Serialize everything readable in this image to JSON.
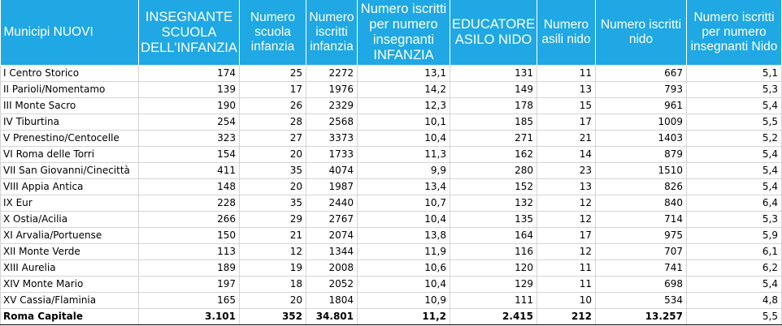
{
  "headers": [
    "Municipi NUOVI",
    "INSEGNANTE SCUOLA DELL'INFANZIA",
    "Numero scuola infanzia",
    "Numero iscritti infanzia",
    "Numero iscritti per numero insegnanti INFANZIA",
    "EDUCATORE ASILO NIDO",
    "Numero asili nido",
    "Numero iscritti nido",
    "Numero iscritti per numero insegnanti Nido"
  ],
  "rows": [
    [
      "I Centro Storico",
      "174",
      "25",
      "2272",
      "13,1",
      "131",
      "11",
      "667",
      "5,1"
    ],
    [
      "II Parioli/Nomentamo",
      "139",
      "17",
      "1976",
      "14,2",
      "149",
      "13",
      "793",
      "5,3"
    ],
    [
      "III Monte Sacro",
      "190",
      "26",
      "2329",
      "12,3",
      "178",
      "15",
      "961",
      "5,4"
    ],
    [
      "IV Tiburtina",
      "254",
      "28",
      "2568",
      "10,1",
      "185",
      "17",
      "1009",
      "5,5"
    ],
    [
      "V Prenestino/Centocelle",
      "323",
      "27",
      "3373",
      "10,4",
      "271",
      "21",
      "1403",
      "5,2"
    ],
    [
      "VI Roma delle Torri",
      "154",
      "20",
      "1733",
      "11,3",
      "162",
      "14",
      "879",
      "5,4"
    ],
    [
      "VII San Giovanni/Cinecittà",
      "411",
      "35",
      "4074",
      "9,9",
      "280",
      "23",
      "1510",
      "5,4"
    ],
    [
      "VIII Appia Antica",
      "148",
      "20",
      "1987",
      "13,4",
      "152",
      "13",
      "826",
      "5,4"
    ],
    [
      "IX Eur",
      "228",
      "35",
      "2440",
      "10,7",
      "132",
      "12",
      "840",
      "6,4"
    ],
    [
      "X Ostia/Acilia",
      "266",
      "29",
      "2767",
      "10,4",
      "135",
      "12",
      "714",
      "5,3"
    ],
    [
      "XI Arvalia/Portuense",
      "150",
      "21",
      "2074",
      "13,8",
      "164",
      "17",
      "975",
      "5,9"
    ],
    [
      "XII Monte Verde",
      "113",
      "12",
      "1344",
      "11,9",
      "116",
      "12",
      "707",
      "6,1"
    ],
    [
      "XIII Aurelia",
      "189",
      "19",
      "2008",
      "10,6",
      "120",
      "11",
      "741",
      "6,2"
    ],
    [
      "XIV Monte Mario",
      "197",
      "18",
      "2052",
      "10,4",
      "129",
      "11",
      "698",
      "5,4"
    ],
    [
      "XV Cassia/Flaminia",
      "165",
      "20",
      "1804",
      "10,9",
      "111",
      "10",
      "534",
      "4,8"
    ]
  ],
  "total": [
    "Roma Capitale",
    "3.101",
    "352",
    "34.801",
    "11,2",
    "2.415",
    "212",
    "13.257",
    "5,5"
  ],
  "colors": {
    "header_bg": "#1fa8e3",
    "header_text": "#ffffff",
    "grid": "#d4d4d4"
  }
}
